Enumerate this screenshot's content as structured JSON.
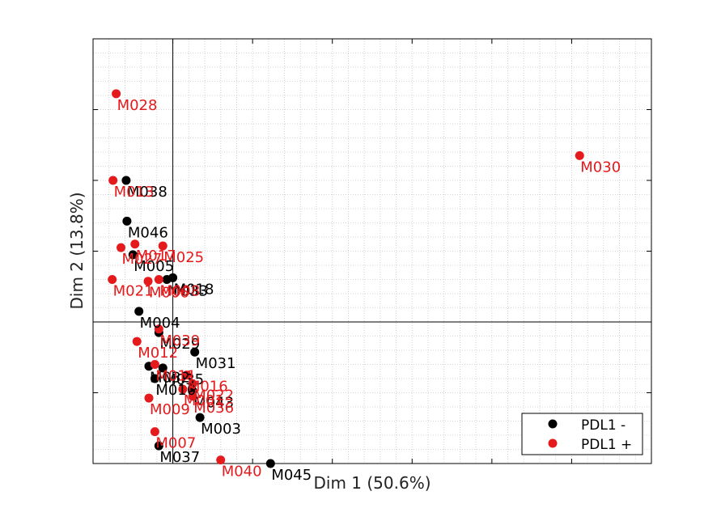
{
  "colors": {
    "negative": "#000000",
    "positive": "#e41a1c",
    "axis": "#000000",
    "grid": "#c8c8c8",
    "background": "#ffffff"
  },
  "chart_data": {
    "type": "scatter",
    "xlabel": "Dim 1 (50.6%)",
    "ylabel": "Dim 2 (13.8%)",
    "xlim": [
      -2.0,
      12.0
    ],
    "ylim": [
      -4.0,
      8.0
    ],
    "grid": true,
    "grid_style": "dotted, minor",
    "legend_position": "bottom-right",
    "reference_lines": {
      "x": 0,
      "y": 0
    },
    "series": [
      {
        "name": "PDL1 -",
        "color": "#000000",
        "points": [
          {
            "label": "M038",
            "x": -1.17,
            "y": 4.0
          },
          {
            "label": "M046",
            "x": -1.15,
            "y": 2.85
          },
          {
            "label": "M005",
            "x": -1.0,
            "y": 1.9
          },
          {
            "label": "M018",
            "x": 0.0,
            "y": 1.25
          },
          {
            "label": "M033",
            "x": -0.15,
            "y": 1.2
          },
          {
            "label": "M004",
            "x": -0.85,
            "y": 0.3
          },
          {
            "label": "M029",
            "x": -0.35,
            "y": -0.3
          },
          {
            "label": "M031",
            "x": 0.55,
            "y": -0.85
          },
          {
            "label": "M032",
            "x": -0.6,
            "y": -1.25
          },
          {
            "label": "M035",
            "x": -0.25,
            "y": -1.3
          },
          {
            "label": "M010",
            "x": -0.45,
            "y": -1.6
          },
          {
            "label": "M043",
            "x": 0.5,
            "y": -1.95
          },
          {
            "label": "M003",
            "x": 0.68,
            "y": -2.7
          },
          {
            "label": "M037",
            "x": -0.35,
            "y": -3.5
          },
          {
            "label": "M045",
            "x": 2.45,
            "y": -4.0
          }
        ]
      },
      {
        "name": "PDL1 +",
        "color": "#e41a1c",
        "points": [
          {
            "label": "M028",
            "x": -1.42,
            "y": 6.45
          },
          {
            "label": "M030",
            "x": 10.2,
            "y": 4.7
          },
          {
            "label": "M013",
            "x": -1.5,
            "y": 4.0
          },
          {
            "label": "M027",
            "x": -1.3,
            "y": 2.1
          },
          {
            "label": "M017",
            "x": -0.95,
            "y": 2.2
          },
          {
            "label": "M025",
            "x": -0.25,
            "y": 2.15
          },
          {
            "label": "M021",
            "x": -1.52,
            "y": 1.2
          },
          {
            "label": "M006",
            "x": -0.62,
            "y": 1.15
          },
          {
            "label": "M008",
            "x": -0.35,
            "y": 1.2
          },
          {
            "label": "M039",
            "x": -0.35,
            "y": -0.2
          },
          {
            "label": "M012",
            "x": -0.9,
            "y": -0.55
          },
          {
            "label": "M011",
            "x": -0.45,
            "y": -1.2
          },
          {
            "label": "M016",
            "x": 0.35,
            "y": -1.5
          },
          {
            "label": "M022",
            "x": 0.5,
            "y": -1.75
          },
          {
            "label": "M001",
            "x": 0.25,
            "y": -1.9
          },
          {
            "label": "M036",
            "x": 0.5,
            "y": -2.1
          },
          {
            "label": "M009",
            "x": -0.6,
            "y": -2.15
          },
          {
            "label": "M007",
            "x": -0.45,
            "y": -3.1
          },
          {
            "label": "M040",
            "x": 1.2,
            "y": -3.9
          }
        ]
      }
    ]
  }
}
